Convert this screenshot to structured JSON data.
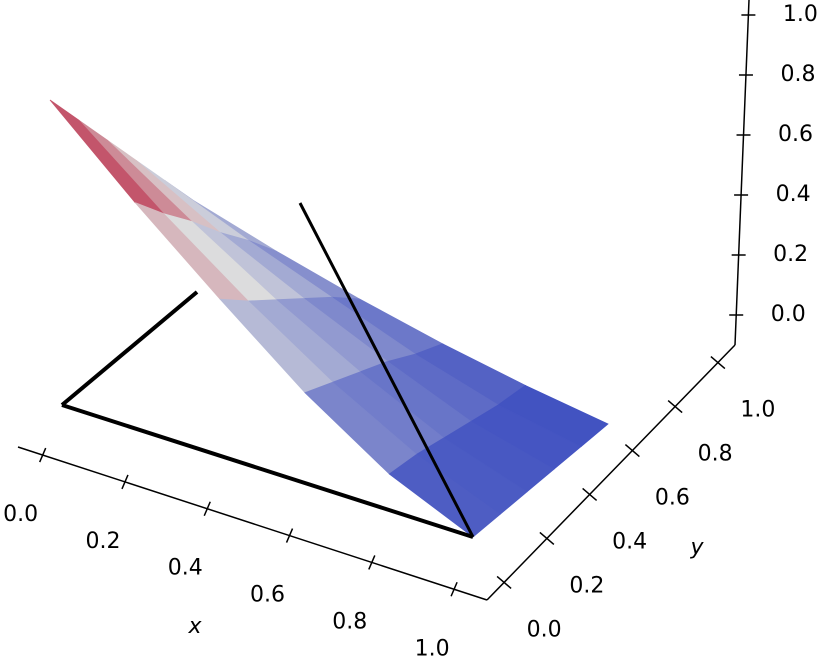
{
  "chart_data": {
    "type": "surface3d",
    "xlabel": "x",
    "ylabel": "y",
    "x": [
      0,
      0.2,
      0.4,
      0.6,
      0.8,
      1
    ],
    "y": [
      0,
      0.2,
      0.4,
      0.6,
      0.8,
      1
    ],
    "z": [
      [
        1.0,
        0.86,
        0.72,
        0.58,
        0.44,
        0.3
      ],
      [
        0.75,
        0.64,
        0.54,
        0.43,
        0.33,
        0.22
      ],
      [
        0.52,
        0.44,
        0.37,
        0.3,
        0.23,
        0.15
      ],
      [
        0.3,
        0.26,
        0.22,
        0.18,
        0.13,
        0.09
      ],
      [
        0.12,
        0.11,
        0.09,
        0.07,
        0.05,
        0.04
      ],
      [
        0,
        0,
        0,
        0,
        0,
        0
      ]
    ],
    "colormap": [
      "#3b4cc0",
      "#dddddd",
      "#b40426"
    ],
    "xlim": [
      -0.06,
      1.08
    ],
    "ylim": [
      -0.08,
      1.08
    ],
    "zlim": [
      -0.1,
      1.05
    ],
    "xticks": [
      {
        "value": 0,
        "label": "0.0"
      },
      {
        "value": 0.2,
        "label": "0.2"
      },
      {
        "value": 0.4,
        "label": "0.4"
      },
      {
        "value": 0.6,
        "label": "0.6"
      },
      {
        "value": 0.8,
        "label": "0.8"
      },
      {
        "value": 1,
        "label": "1.0"
      }
    ],
    "yticks": [
      {
        "value": 0,
        "label": "0.0"
      },
      {
        "value": 0.2,
        "label": "0.2"
      },
      {
        "value": 0.4,
        "label": "0.4"
      },
      {
        "value": 0.6,
        "label": "0.6"
      },
      {
        "value": 0.8,
        "label": "0.8"
      },
      {
        "value": 1,
        "label": "1.0"
      }
    ],
    "zticks": [
      {
        "value": 0,
        "label": "0.0"
      },
      {
        "value": 0.2,
        "label": "0.2"
      },
      {
        "value": 0.4,
        "label": "0.4"
      },
      {
        "value": 0.6,
        "label": "0.6"
      },
      {
        "value": 0.8,
        "label": "0.8"
      },
      {
        "value": 1,
        "label": "1.0"
      }
    ]
  }
}
